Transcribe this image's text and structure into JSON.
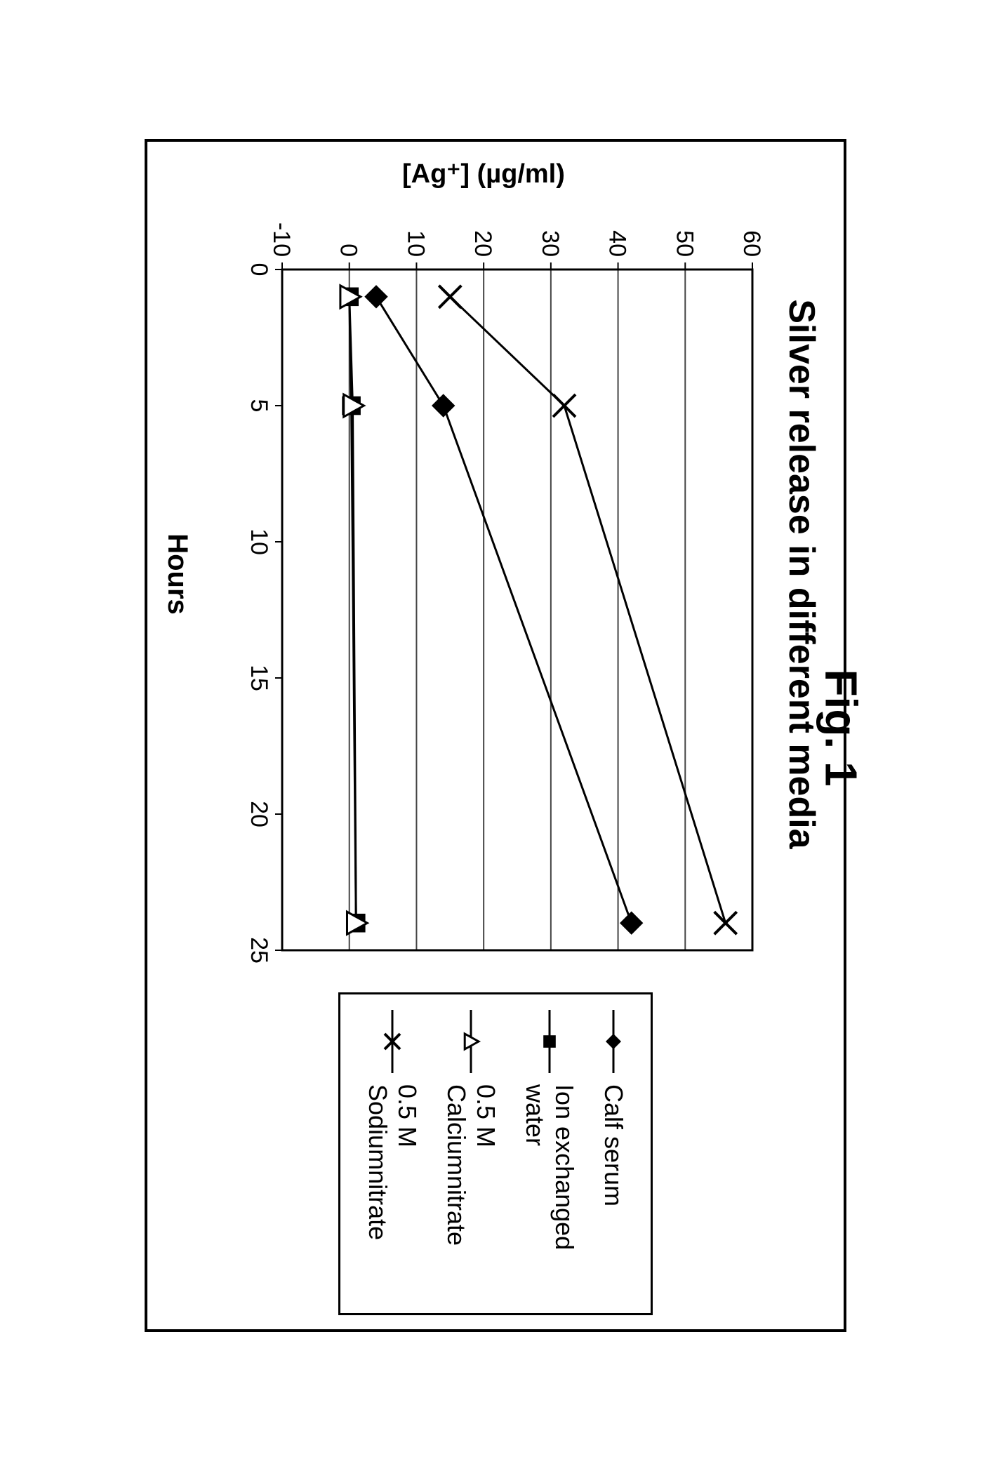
{
  "figure_caption": "Fig. 1",
  "chart": {
    "type": "line",
    "title": "Silver release in different media",
    "title_fontsize": 52,
    "xlabel": "Hours",
    "ylabel": "[Ag⁺] (µg/ml)",
    "label_fontsize": 40,
    "background_color": "#ffffff",
    "grid_color": "#444444",
    "grid_linewidth": 2,
    "axis_color": "#000000",
    "axis_linewidth": 3,
    "xlim": [
      0,
      25
    ],
    "ylim": [
      -10,
      60
    ],
    "xticks": [
      0,
      5,
      10,
      15,
      20,
      25
    ],
    "yticks": [
      -10,
      0,
      10,
      20,
      30,
      40,
      50,
      60
    ],
    "tick_fontsize": 34,
    "line_width": 3,
    "marker_size": 16,
    "series": [
      {
        "name": "Calf serum",
        "marker": "diamond-filled",
        "color": "#000000",
        "x": [
          1,
          5,
          24
        ],
        "y": [
          4,
          14,
          42
        ]
      },
      {
        "name": "Ion exchanged water",
        "marker": "square-filled",
        "color": "#000000",
        "x": [
          1,
          5,
          24
        ],
        "y": [
          0,
          0.3,
          1
        ]
      },
      {
        "name": "0.5 M Calciumnitrate",
        "marker": "triangle-open",
        "color": "#000000",
        "x": [
          1,
          5,
          24
        ],
        "y": [
          0,
          0.5,
          1
        ]
      },
      {
        "name": "0.5 M Sodiumnitrate",
        "marker": "x",
        "color": "#000000",
        "x": [
          1,
          5,
          24
        ],
        "y": [
          15,
          32,
          56
        ]
      }
    ]
  }
}
